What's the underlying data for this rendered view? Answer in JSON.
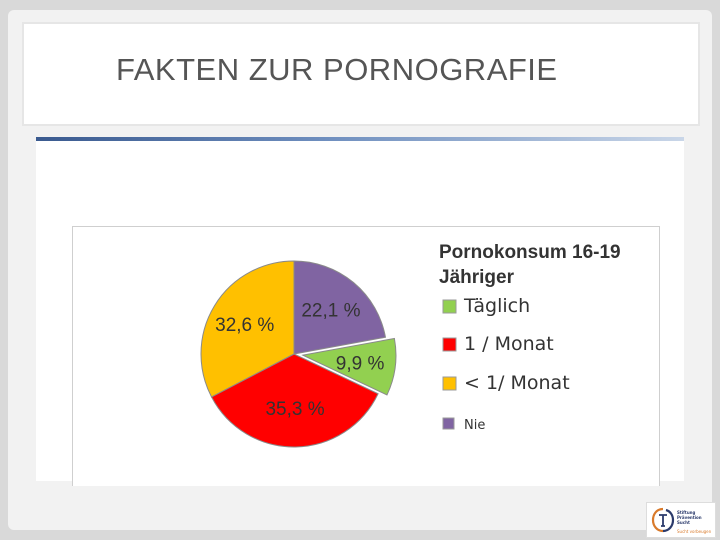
{
  "slide": {
    "title": "FAKTEN ZUR PORNOGRAFIE"
  },
  "colors": {
    "accent_rule": "#3a5a8f",
    "frame": "#cfcfcf"
  },
  "chart_data": {
    "type": "pie",
    "title_line1": "Pornokonsum  16-19",
    "title_line2": "Jähriger",
    "legend_placement": "right",
    "slices": [
      {
        "name": "Täglich",
        "value": 9.9,
        "label": "9,9  %",
        "color": "#92d050"
      },
      {
        "name": "1 / Monat",
        "value": 35.3,
        "label": "35,3 %",
        "color": "#ff0000"
      },
      {
        "name": "< 1/ Monat",
        "value": 32.6,
        "label": "32,6  %",
        "color": "#ffc000"
      },
      {
        "name": "Nie",
        "value": 22.1,
        "label": "22,1  %",
        "color": "#8064a2"
      }
    ]
  },
  "logo": {
    "line1": "Stiftung",
    "line2": "Prävention",
    "line3": "Sucht",
    "tagline": "Sucht vorbeugen"
  }
}
